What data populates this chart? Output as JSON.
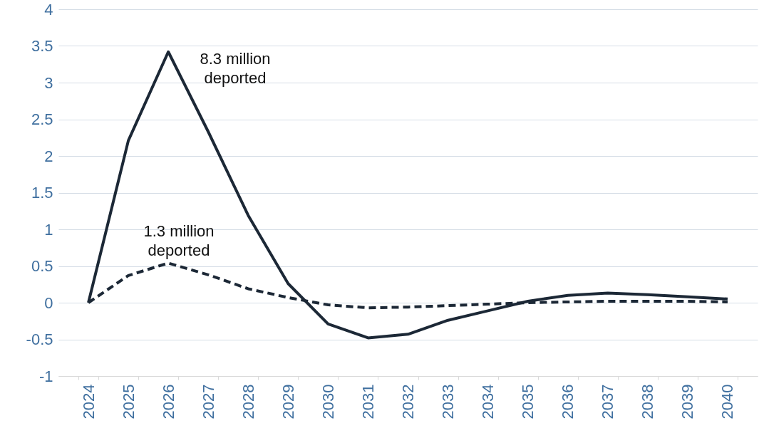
{
  "chart_data": {
    "type": "line",
    "categories": [
      "2024",
      "2025",
      "2026",
      "2027",
      "2028",
      "2029",
      "2030",
      "2031",
      "2032",
      "2033",
      "2034",
      "2035",
      "2036",
      "2037",
      "2038",
      "2039",
      "2040"
    ],
    "series": [
      {
        "color": "#1c2836",
        "line_style": "solid",
        "values": [
          0,
          2.21,
          3.42,
          2.33,
          1.19,
          0.26,
          -0.29,
          -0.48,
          -0.43,
          -0.24,
          -0.11,
          0.02,
          0.1,
          0.13,
          0.11,
          0.08,
          0.05
        ]
      },
      {
        "color": "#1c2836",
        "line_style": "dashed",
        "values": [
          0,
          0.37,
          0.54,
          0.38,
          0.19,
          0.07,
          -0.03,
          -0.07,
          -0.06,
          -0.04,
          -0.02,
          0,
          0.01,
          0.02,
          0.02,
          0.02,
          0.01
        ]
      }
    ],
    "annotations": [
      "8.3 million deported",
      "1.3 million deported"
    ],
    "ylim": [
      -1,
      4
    ],
    "yticks": [
      -1,
      -0.5,
      0,
      0.5,
      1,
      1.5,
      2,
      2.5,
      3,
      3.5,
      4
    ],
    "grid": "y"
  }
}
